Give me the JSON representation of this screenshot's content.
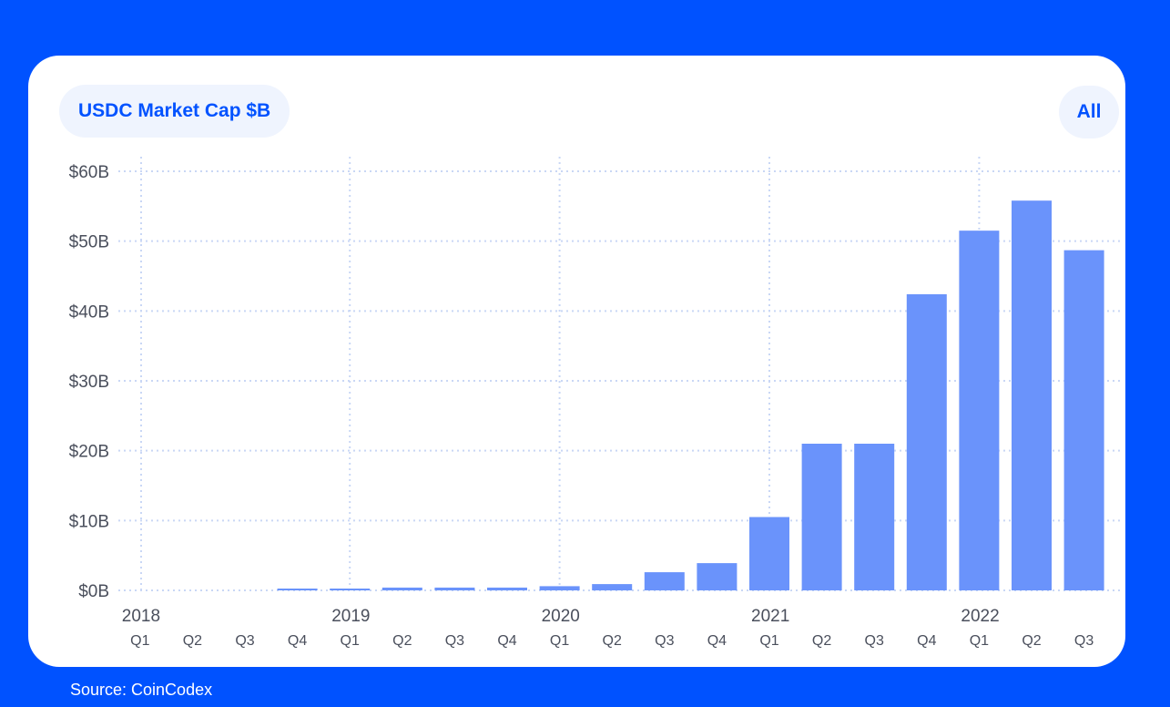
{
  "header": {
    "title": "USDC Market Cap $B",
    "range_label": "All"
  },
  "footer": {
    "source": "Source: CoinCodex"
  },
  "colors": {
    "background": "#0052ff",
    "card": "#ffffff",
    "pill": "#eff4fe",
    "accent": "#0052ff",
    "bar": "#6a93fb",
    "grid": "#c9d7f5",
    "text": "#4a4f5c"
  },
  "chart_data": {
    "type": "bar",
    "title": "USDC Market Cap $B",
    "xlabel": "",
    "ylabel": "",
    "ylim": [
      0,
      60
    ],
    "y_ticks": [
      {
        "value": 0,
        "label": "$0B"
      },
      {
        "value": 10,
        "label": "$10B"
      },
      {
        "value": 20,
        "label": "$20B"
      },
      {
        "value": 30,
        "label": "$30B"
      },
      {
        "value": 40,
        "label": "$40B"
      },
      {
        "value": 50,
        "label": "$50B"
      },
      {
        "value": 60,
        "label": "$60B"
      }
    ],
    "categories": [
      "Q1",
      "Q2",
      "Q3",
      "Q4",
      "Q1",
      "Q2",
      "Q3",
      "Q4",
      "Q1",
      "Q2",
      "Q3",
      "Q4",
      "Q1",
      "Q2",
      "Q3",
      "Q4",
      "Q1",
      "Q2",
      "Q3"
    ],
    "years": [
      {
        "label": "2018",
        "index": 0
      },
      {
        "label": "2019",
        "index": 4
      },
      {
        "label": "2020",
        "index": 8
      },
      {
        "label": "2021",
        "index": 12
      },
      {
        "label": "2022",
        "index": 16
      }
    ],
    "values": [
      0,
      0,
      0,
      0.2,
      0.2,
      0.4,
      0.4,
      0.4,
      0.6,
      0.9,
      2.6,
      3.9,
      10.5,
      21.0,
      21.0,
      42.4,
      51.5,
      55.8,
      48.7
    ],
    "grid": true,
    "legend": "none"
  }
}
